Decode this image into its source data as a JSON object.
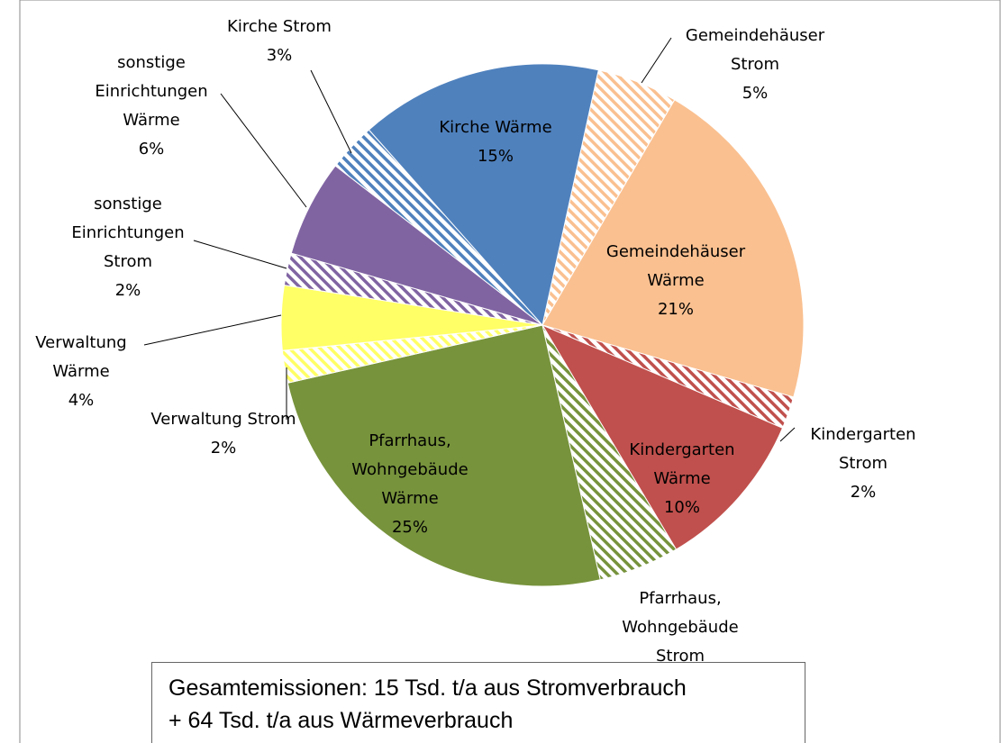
{
  "chart_data": {
    "type": "pie",
    "categories": [
      "Gemeindehäuser Strom",
      "Gemeindehäuser Wärme",
      "Kindergarten Strom",
      "Kindergarten Wärme",
      "Pfarrhaus, Wohngebäude Strom",
      "Pfarrhaus, Wohngebäude Wärme",
      "Verwaltung Strom",
      "Verwaltung Wärme",
      "sonstige Einrichtungen Strom",
      "sonstige Einrichtungen Wärme",
      "Kirche Strom",
      "Kirche Wärme"
    ],
    "values": [
      5,
      21,
      2,
      10,
      5,
      25,
      2,
      4,
      2,
      6,
      3,
      15
    ],
    "value_labels": [
      "5%",
      "21%",
      "2%",
      "10%",
      null,
      "25%",
      "2%",
      "4%",
      "2%",
      "6%",
      "3%",
      "15%"
    ],
    "colors": [
      "#fac090",
      "#fac090",
      "#c0504d",
      "#c0504d",
      "#77933c",
      "#77933c",
      "#ffff66",
      "#ffff66",
      "#8064a2",
      "#8064a2",
      "#4f81bd",
      "#4f81bd"
    ],
    "hatched": [
      true,
      false,
      true,
      false,
      true,
      false,
      true,
      false,
      true,
      false,
      true,
      false
    ],
    "annotations": [
      "Gesamtemissionen: 15 Tsd. t/a aus Stromverbrauch",
      "+ 64 Tsd. t/a aus Wärmeverbrauch"
    ]
  }
}
